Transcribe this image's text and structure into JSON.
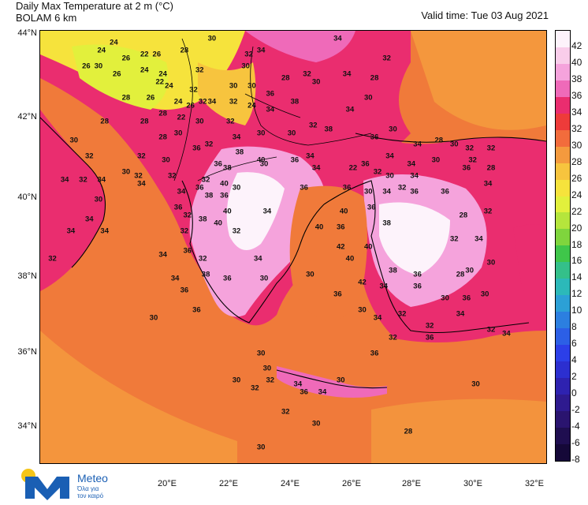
{
  "header": {
    "title_line1": "Daily Max Temperature at 2 m (°C)",
    "title_line2": "BOLAM 6 km",
    "valid_time": "Valid time: Tue 03 Aug 2021"
  },
  "axes": {
    "latitudes": [
      "44°N",
      "42°N",
      "40°N",
      "38°N",
      "36°N",
      "34°N"
    ],
    "longitudes": [
      "20°E",
      "22°E",
      "24°E",
      "26°E",
      "28°E",
      "30°E",
      "32°E"
    ]
  },
  "colorbar": {
    "ticks": [
      "42",
      "40",
      "38",
      "36",
      "34",
      "32",
      "30",
      "28",
      "26",
      "24",
      "22",
      "20",
      "18",
      "16",
      "14",
      "12",
      "10",
      "8",
      "6",
      "4",
      "2",
      "0",
      "-2",
      "-4",
      "-6",
      "-8"
    ],
    "colors": [
      "#fdf3fb",
      "#f9cdea",
      "#f5a3dc",
      "#ef6ab9",
      "#ea2d6f",
      "#ee3b3a",
      "#f26c3c",
      "#f49a3e",
      "#f7c43e",
      "#f6e33c",
      "#e2f03c",
      "#b5e53c",
      "#7fd53d",
      "#3fc64a",
      "#34c08a",
      "#2cb9b9",
      "#2ca0d6",
      "#2c7fe0",
      "#2c5fe6",
      "#2c3fe8",
      "#2c2fd0",
      "#2e22b0",
      "#2e1a8f",
      "#2a146f",
      "#1f0e50",
      "#150838"
    ]
  },
  "map_labels": [
    {
      "t": "24",
      "lon": 19.4,
      "lat": 43.8
    },
    {
      "t": "24",
      "lon": 19.0,
      "lat": 43.6
    },
    {
      "t": "26",
      "lon": 19.8,
      "lat": 43.4
    },
    {
      "t": "22",
      "lon": 20.4,
      "lat": 43.5
    },
    {
      "t": "26",
      "lon": 20.8,
      "lat": 43.5
    },
    {
      "t": "28",
      "lon": 21.7,
      "lat": 43.6
    },
    {
      "t": "30",
      "lon": 22.6,
      "lat": 43.9
    },
    {
      "t": "32",
      "lon": 23.8,
      "lat": 43.5
    },
    {
      "t": "34",
      "lon": 24.2,
      "lat": 43.6
    },
    {
      "t": "34",
      "lon": 26.7,
      "lat": 43.9
    },
    {
      "t": "32",
      "lon": 28.3,
      "lat": 43.4
    },
    {
      "t": "26",
      "lon": 18.5,
      "lat": 43.2
    },
    {
      "t": "30",
      "lon": 18.9,
      "lat": 43.2
    },
    {
      "t": "26",
      "lon": 19.5,
      "lat": 43.0
    },
    {
      "t": "24",
      "lon": 20.4,
      "lat": 43.1
    },
    {
      "t": "24",
      "lon": 21.0,
      "lat": 43.0
    },
    {
      "t": "32",
      "lon": 22.2,
      "lat": 43.1
    },
    {
      "t": "30",
      "lon": 23.7,
      "lat": 43.2
    },
    {
      "t": "28",
      "lon": 25.0,
      "lat": 42.9
    },
    {
      "t": "32",
      "lon": 25.7,
      "lat": 43.0
    },
    {
      "t": "30",
      "lon": 26.0,
      "lat": 42.8
    },
    {
      "t": "34",
      "lon": 27.0,
      "lat": 43.0
    },
    {
      "t": "28",
      "lon": 27.9,
      "lat": 42.9
    },
    {
      "t": "30",
      "lon": 27.7,
      "lat": 42.4
    },
    {
      "t": "28",
      "lon": 19.8,
      "lat": 42.4
    },
    {
      "t": "22",
      "lon": 20.9,
      "lat": 42.8
    },
    {
      "t": "24",
      "lon": 21.2,
      "lat": 42.7
    },
    {
      "t": "32",
      "lon": 22.0,
      "lat": 42.6
    },
    {
      "t": "26",
      "lon": 20.6,
      "lat": 42.4
    },
    {
      "t": "24",
      "lon": 21.5,
      "lat": 42.3
    },
    {
      "t": "32",
      "lon": 22.3,
      "lat": 42.3
    },
    {
      "t": "26",
      "lon": 21.9,
      "lat": 42.2
    },
    {
      "t": "34",
      "lon": 22.6,
      "lat": 42.3
    },
    {
      "t": "30",
      "lon": 23.3,
      "lat": 42.7
    },
    {
      "t": "30",
      "lon": 23.9,
      "lat": 42.7
    },
    {
      "t": "32",
      "lon": 23.3,
      "lat": 42.3
    },
    {
      "t": "24",
      "lon": 23.9,
      "lat": 42.2
    },
    {
      "t": "36",
      "lon": 24.5,
      "lat": 42.5
    },
    {
      "t": "38",
      "lon": 25.3,
      "lat": 42.3
    },
    {
      "t": "34",
      "lon": 24.5,
      "lat": 42.1
    },
    {
      "t": "34",
      "lon": 27.1,
      "lat": 42.1
    },
    {
      "t": "30",
      "lon": 28.5,
      "lat": 41.6
    },
    {
      "t": "28",
      "lon": 19.1,
      "lat": 41.8
    },
    {
      "t": "28",
      "lon": 20.4,
      "lat": 41.8
    },
    {
      "t": "28",
      "lon": 21.0,
      "lat": 42.0
    },
    {
      "t": "22",
      "lon": 21.6,
      "lat": 41.9
    },
    {
      "t": "30",
      "lon": 22.2,
      "lat": 41.8
    },
    {
      "t": "32",
      "lon": 23.2,
      "lat": 41.8
    },
    {
      "t": "32",
      "lon": 25.9,
      "lat": 41.7
    },
    {
      "t": "38",
      "lon": 26.4,
      "lat": 41.6
    },
    {
      "t": "36",
      "lon": 27.9,
      "lat": 41.4
    },
    {
      "t": "28",
      "lon": 30.0,
      "lat": 41.3
    },
    {
      "t": "30",
      "lon": 30.5,
      "lat": 41.2
    },
    {
      "t": "32",
      "lon": 31.0,
      "lat": 41.1
    },
    {
      "t": "32",
      "lon": 31.7,
      "lat": 41.1
    },
    {
      "t": "30",
      "lon": 18.1,
      "lat": 41.3
    },
    {
      "t": "28",
      "lon": 21.0,
      "lat": 41.4
    },
    {
      "t": "30",
      "lon": 21.5,
      "lat": 41.5
    },
    {
      "t": "36",
      "lon": 22.1,
      "lat": 41.1
    },
    {
      "t": "32",
      "lon": 22.5,
      "lat": 41.2
    },
    {
      "t": "34",
      "lon": 23.4,
      "lat": 41.4
    },
    {
      "t": "30",
      "lon": 24.2,
      "lat": 41.5
    },
    {
      "t": "30",
      "lon": 25.2,
      "lat": 41.5
    },
    {
      "t": "34",
      "lon": 29.3,
      "lat": 41.2
    },
    {
      "t": "32",
      "lon": 18.6,
      "lat": 40.9
    },
    {
      "t": "32",
      "lon": 20.3,
      "lat": 40.9
    },
    {
      "t": "30",
      "lon": 21.1,
      "lat": 40.8
    },
    {
      "t": "38",
      "lon": 23.5,
      "lat": 41.0
    },
    {
      "t": "40",
      "lon": 24.2,
      "lat": 40.8
    },
    {
      "t": "36",
      "lon": 25.3,
      "lat": 40.8
    },
    {
      "t": "34",
      "lon": 25.8,
      "lat": 40.9
    },
    {
      "t": "34",
      "lon": 28.4,
      "lat": 40.9
    },
    {
      "t": "34",
      "lon": 29.1,
      "lat": 40.7
    },
    {
      "t": "30",
      "lon": 29.9,
      "lat": 40.8
    },
    {
      "t": "36",
      "lon": 30.9,
      "lat": 40.6
    },
    {
      "t": "32",
      "lon": 31.1,
      "lat": 40.8
    },
    {
      "t": "28",
      "lon": 31.7,
      "lat": 40.6
    },
    {
      "t": "30",
      "lon": 19.8,
      "lat": 40.5
    },
    {
      "t": "32",
      "lon": 20.2,
      "lat": 40.4
    },
    {
      "t": "36",
      "lon": 22.8,
      "lat": 40.7
    },
    {
      "t": "38",
      "lon": 23.1,
      "lat": 40.6
    },
    {
      "t": "30",
      "lon": 24.3,
      "lat": 40.7
    },
    {
      "t": "34",
      "lon": 26.0,
      "lat": 40.6
    },
    {
      "t": "22",
      "lon": 27.2,
      "lat": 40.6
    },
    {
      "t": "36",
      "lon": 27.6,
      "lat": 40.7
    },
    {
      "t": "32",
      "lon": 28.0,
      "lat": 40.5
    },
    {
      "t": "30",
      "lon": 28.4,
      "lat": 40.4
    },
    {
      "t": "34",
      "lon": 29.2,
      "lat": 40.4
    },
    {
      "t": "34",
      "lon": 31.6,
      "lat": 40.2
    },
    {
      "t": "34",
      "lon": 17.8,
      "lat": 40.3
    },
    {
      "t": "32",
      "lon": 18.4,
      "lat": 40.3
    },
    {
      "t": "34",
      "lon": 19.0,
      "lat": 40.3
    },
    {
      "t": "34",
      "lon": 20.3,
      "lat": 40.2
    },
    {
      "t": "32",
      "lon": 21.3,
      "lat": 40.4
    },
    {
      "t": "34",
      "lon": 21.6,
      "lat": 40.0
    },
    {
      "t": "32",
      "lon": 22.4,
      "lat": 40.3
    },
    {
      "t": "40",
      "lon": 23.0,
      "lat": 40.2
    },
    {
      "t": "36",
      "lon": 22.2,
      "lat": 40.1
    },
    {
      "t": "38",
      "lon": 22.5,
      "lat": 39.9
    },
    {
      "t": "36",
      "lon": 23.0,
      "lat": 39.9
    },
    {
      "t": "30",
      "lon": 23.4,
      "lat": 40.1
    },
    {
      "t": "36",
      "lon": 25.6,
      "lat": 40.1
    },
    {
      "t": "36",
      "lon": 27.0,
      "lat": 40.1
    },
    {
      "t": "30",
      "lon": 27.7,
      "lat": 40.0
    },
    {
      "t": "34",
      "lon": 28.3,
      "lat": 40.0
    },
    {
      "t": "32",
      "lon": 28.8,
      "lat": 40.1
    },
    {
      "t": "36",
      "lon": 29.2,
      "lat": 40.0
    },
    {
      "t": "36",
      "lon": 30.2,
      "lat": 40.0
    },
    {
      "t": "30",
      "lon": 18.9,
      "lat": 39.8
    },
    {
      "t": "36",
      "lon": 21.5,
      "lat": 39.6
    },
    {
      "t": "32",
      "lon": 21.8,
      "lat": 39.4
    },
    {
      "t": "38",
      "lon": 22.3,
      "lat": 39.3
    },
    {
      "t": "40",
      "lon": 23.1,
      "lat": 39.5
    },
    {
      "t": "34",
      "lon": 24.4,
      "lat": 39.5
    },
    {
      "t": "40",
      "lon": 26.9,
      "lat": 39.5
    },
    {
      "t": "36",
      "lon": 27.8,
      "lat": 39.6
    },
    {
      "t": "38",
      "lon": 28.3,
      "lat": 39.2
    },
    {
      "t": "28",
      "lon": 30.8,
      "lat": 39.4
    },
    {
      "t": "32",
      "lon": 31.6,
      "lat": 39.5
    },
    {
      "t": "34",
      "lon": 18.0,
      "lat": 39.0
    },
    {
      "t": "34",
      "lon": 18.6,
      "lat": 39.3
    },
    {
      "t": "34",
      "lon": 19.1,
      "lat": 39.0
    },
    {
      "t": "32",
      "lon": 21.7,
      "lat": 39.0
    },
    {
      "t": "40",
      "lon": 22.8,
      "lat": 39.2
    },
    {
      "t": "32",
      "lon": 23.4,
      "lat": 39.0
    },
    {
      "t": "40",
      "lon": 26.1,
      "lat": 39.1
    },
    {
      "t": "36",
      "lon": 26.8,
      "lat": 39.1
    },
    {
      "t": "42",
      "lon": 26.8,
      "lat": 38.6
    },
    {
      "t": "40",
      "lon": 27.7,
      "lat": 38.6
    },
    {
      "t": "32",
      "lon": 30.5,
      "lat": 38.8
    },
    {
      "t": "34",
      "lon": 31.3,
      "lat": 38.8
    },
    {
      "t": "32",
      "lon": 17.4,
      "lat": 38.3
    },
    {
      "t": "34",
      "lon": 21.0,
      "lat": 38.4
    },
    {
      "t": "36",
      "lon": 21.8,
      "lat": 38.5
    },
    {
      "t": "32",
      "lon": 22.3,
      "lat": 38.3
    },
    {
      "t": "34",
      "lon": 24.1,
      "lat": 38.3
    },
    {
      "t": "30",
      "lon": 25.8,
      "lat": 37.9
    },
    {
      "t": "40",
      "lon": 27.1,
      "lat": 38.3
    },
    {
      "t": "38",
      "lon": 28.5,
      "lat": 38.0
    },
    {
      "t": "36",
      "lon": 29.3,
      "lat": 37.9
    },
    {
      "t": "30",
      "lon": 31.0,
      "lat": 38.0
    },
    {
      "t": "30",
      "lon": 31.7,
      "lat": 38.2
    },
    {
      "t": "34",
      "lon": 21.4,
      "lat": 37.8
    },
    {
      "t": "38",
      "lon": 22.4,
      "lat": 37.9
    },
    {
      "t": "36",
      "lon": 23.1,
      "lat": 37.8
    },
    {
      "t": "30",
      "lon": 24.3,
      "lat": 37.8
    },
    {
      "t": "42",
      "lon": 27.5,
      "lat": 37.7
    },
    {
      "t": "34",
      "lon": 28.2,
      "lat": 37.6
    },
    {
      "t": "36",
      "lon": 29.3,
      "lat": 37.6
    },
    {
      "t": "28",
      "lon": 30.7,
      "lat": 37.9
    },
    {
      "t": "36",
      "lon": 21.7,
      "lat": 37.5
    },
    {
      "t": "36",
      "lon": 26.7,
      "lat": 37.4
    },
    {
      "t": "30",
      "lon": 30.2,
      "lat": 37.3
    },
    {
      "t": "36",
      "lon": 30.9,
      "lat": 37.3
    },
    {
      "t": "30",
      "lon": 31.5,
      "lat": 37.4
    },
    {
      "t": "36",
      "lon": 22.1,
      "lat": 37.0
    },
    {
      "t": "30",
      "lon": 27.5,
      "lat": 37.0
    },
    {
      "t": "34",
      "lon": 28.0,
      "lat": 36.8
    },
    {
      "t": "32",
      "lon": 28.8,
      "lat": 36.9
    },
    {
      "t": "34",
      "lon": 30.7,
      "lat": 36.9
    },
    {
      "t": "32",
      "lon": 29.7,
      "lat": 36.6
    },
    {
      "t": "30",
      "lon": 20.7,
      "lat": 36.8
    },
    {
      "t": "32",
      "lon": 28.5,
      "lat": 36.3
    },
    {
      "t": "36",
      "lon": 29.7,
      "lat": 36.3
    },
    {
      "t": "36",
      "lon": 27.9,
      "lat": 35.9
    },
    {
      "t": "32",
      "lon": 31.7,
      "lat": 36.5
    },
    {
      "t": "34",
      "lon": 32.2,
      "lat": 36.4
    },
    {
      "t": "30",
      "lon": 24.2,
      "lat": 35.9
    },
    {
      "t": "30",
      "lon": 23.4,
      "lat": 35.2
    },
    {
      "t": "30",
      "lon": 24.4,
      "lat": 35.5
    },
    {
      "t": "32",
      "lon": 24.5,
      "lat": 35.2
    },
    {
      "t": "34",
      "lon": 25.4,
      "lat": 35.1
    },
    {
      "t": "36",
      "lon": 25.6,
      "lat": 34.9
    },
    {
      "t": "34",
      "lon": 26.2,
      "lat": 34.9
    },
    {
      "t": "30",
      "lon": 26.8,
      "lat": 35.2
    },
    {
      "t": "30",
      "lon": 31.2,
      "lat": 35.1
    },
    {
      "t": "32",
      "lon": 24.0,
      "lat": 35.0
    },
    {
      "t": "32",
      "lon": 25.0,
      "lat": 34.4
    },
    {
      "t": "30",
      "lon": 26.0,
      "lat": 34.1
    },
    {
      "t": "28",
      "lon": 29.0,
      "lat": 33.9
    },
    {
      "t": "30",
      "lon": 24.2,
      "lat": 33.5
    }
  ],
  "logo": {
    "name": "Meteo",
    "subtitle_line1": "Όλα για",
    "subtitle_line2": "τον καιρό"
  }
}
